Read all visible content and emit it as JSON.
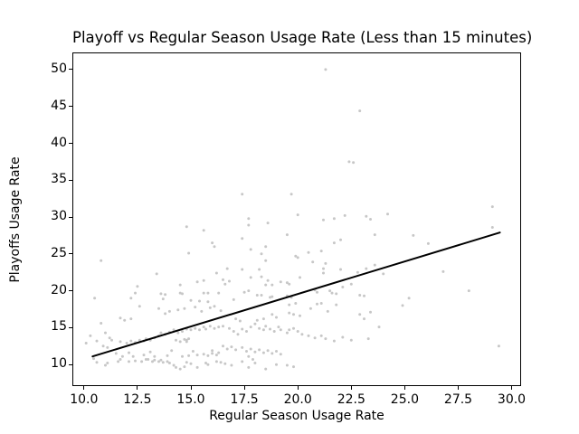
{
  "figure": {
    "background": "#ffffff",
    "text_color": "#000000"
  },
  "chart_data": {
    "type": "scatter",
    "title": "Playoff vs Regular Season Usage Rate (Less than 15 minutes)",
    "xlabel": "Regular Season Usage Rate",
    "ylabel": "Playoffs Usage Rate",
    "xlim": [
      9.5,
      30.4
    ],
    "ylim": [
      7.2,
      52.2
    ],
    "grid": false,
    "legend": null,
    "xticks": [
      {
        "value": 10.0,
        "label": "10.0"
      },
      {
        "value": 12.5,
        "label": "12.5"
      },
      {
        "value": 15.0,
        "label": "15.0"
      },
      {
        "value": 17.5,
        "label": "17.5"
      },
      {
        "value": 20.0,
        "label": "20.0"
      },
      {
        "value": 22.5,
        "label": "22.5"
      },
      {
        "value": 25.0,
        "label": "25.0"
      },
      {
        "value": 27.5,
        "label": "27.5"
      },
      {
        "value": 30.0,
        "label": "30.0"
      }
    ],
    "yticks": [
      {
        "value": 10,
        "label": "10"
      },
      {
        "value": 15,
        "label": "15"
      },
      {
        "value": 20,
        "label": "20"
      },
      {
        "value": 25,
        "label": "25"
      },
      {
        "value": 30,
        "label": "30"
      },
      {
        "value": 35,
        "label": "35"
      },
      {
        "value": 40,
        "label": "40"
      },
      {
        "value": 45,
        "label": "45"
      },
      {
        "value": 50,
        "label": "50"
      }
    ],
    "point_color": "#c7c7c7",
    "point_radius": 1.5,
    "trend_line": {
      "x_start": 10.4,
      "y_start": 11.1,
      "x_end": 29.45,
      "y_end": 27.9,
      "color": "#000000",
      "width": 2
    },
    "points": [
      [
        21.3,
        50.0
      ],
      [
        22.9,
        44.4
      ],
      [
        22.4,
        37.5
      ],
      [
        22.6,
        37.4
      ],
      [
        17.4,
        33.1
      ],
      [
        19.7,
        33.1
      ],
      [
        29.1,
        31.4
      ],
      [
        20.0,
        30.3
      ],
      [
        24.2,
        30.4
      ],
      [
        22.2,
        30.2
      ],
      [
        23.2,
        30.1
      ],
      [
        23.4,
        29.7
      ],
      [
        21.2,
        29.6
      ],
      [
        21.7,
        29.8
      ],
      [
        17.7,
        29.8
      ],
      [
        18.6,
        29.2
      ],
      [
        17.7,
        28.9
      ],
      [
        29.1,
        28.6
      ],
      [
        14.8,
        28.7
      ],
      [
        15.6,
        28.2
      ],
      [
        16.0,
        26.5
      ],
      [
        16.1,
        26.0
      ],
      [
        14.9,
        25.1
      ],
      [
        17.4,
        27.1
      ],
      [
        19.5,
        27.6
      ],
      [
        21.7,
        26.5
      ],
      [
        22.0,
        26.9
      ],
      [
        17.8,
        25.6
      ],
      [
        18.5,
        26.0
      ],
      [
        18.3,
        25.0
      ],
      [
        20.5,
        25.2
      ],
      [
        21.1,
        25.4
      ],
      [
        23.6,
        27.6
      ],
      [
        25.4,
        27.5
      ],
      [
        26.1,
        26.4
      ],
      [
        10.8,
        24.1
      ],
      [
        13.4,
        22.3
      ],
      [
        16.2,
        22.4
      ],
      [
        18.5,
        24.1
      ],
      [
        19.9,
        24.7
      ],
      [
        20.0,
        24.5
      ],
      [
        21.3,
        23.7
      ],
      [
        20.7,
        23.9
      ],
      [
        16.7,
        23.0
      ],
      [
        17.4,
        22.9
      ],
      [
        18.2,
        22.9
      ],
      [
        18.3,
        21.9
      ],
      [
        17.8,
        21.8
      ],
      [
        20.1,
        21.8
      ],
      [
        21.2,
        23.0
      ],
      [
        21.2,
        22.4
      ],
      [
        22.0,
        22.9
      ],
      [
        22.8,
        22.5
      ],
      [
        23.2,
        23.0
      ],
      [
        23.6,
        23.5
      ],
      [
        24.0,
        22.3
      ],
      [
        26.8,
        22.6
      ],
      [
        15.3,
        21.2
      ],
      [
        15.6,
        21.4
      ],
      [
        14.5,
        20.8
      ],
      [
        12.5,
        20.6
      ],
      [
        12.4,
        19.7
      ],
      [
        13.6,
        19.6
      ],
      [
        13.8,
        19.5
      ],
      [
        14.5,
        19.7
      ],
      [
        14.6,
        19.6
      ],
      [
        15.6,
        19.7
      ],
      [
        15.8,
        19.7
      ],
      [
        16.3,
        19.7
      ],
      [
        10.5,
        19.0
      ],
      [
        12.2,
        19.0
      ],
      [
        13.7,
        18.9
      ],
      [
        15.0,
        18.7
      ],
      [
        15.4,
        18.6
      ],
      [
        15.8,
        18.5
      ],
      [
        18.6,
        21.4
      ],
      [
        18.8,
        20.8
      ],
      [
        18.5,
        20.8
      ],
      [
        19.2,
        21.2
      ],
      [
        19.5,
        21.1
      ],
      [
        19.6,
        20.9
      ],
      [
        16.5,
        21.5
      ],
      [
        16.8,
        21.3
      ],
      [
        16.6,
        20.9
      ],
      [
        17.5,
        19.8
      ],
      [
        17.7,
        20.0
      ],
      [
        18.1,
        19.4
      ],
      [
        18.3,
        19.4
      ],
      [
        18.7,
        19.1
      ],
      [
        18.8,
        19.2
      ],
      [
        19.5,
        19.3
      ],
      [
        19.7,
        19.1
      ],
      [
        20.8,
        20.1
      ],
      [
        20.9,
        19.8
      ],
      [
        21.5,
        20.0
      ],
      [
        21.6,
        19.7
      ],
      [
        21.8,
        19.6
      ],
      [
        22.1,
        20.5
      ],
      [
        22.5,
        20.9
      ],
      [
        22.9,
        19.4
      ],
      [
        23.1,
        19.3
      ],
      [
        17.0,
        18.8
      ],
      [
        28.0,
        20.0
      ],
      [
        25.2,
        19.0
      ],
      [
        24.9,
        18.0
      ],
      [
        12.6,
        17.9
      ],
      [
        13.5,
        17.6
      ],
      [
        11.7,
        16.3
      ],
      [
        11.9,
        16.0
      ],
      [
        12.2,
        16.2
      ],
      [
        13.8,
        16.9
      ],
      [
        14.0,
        17.2
      ],
      [
        14.4,
        17.4
      ],
      [
        14.7,
        17.6
      ],
      [
        15.2,
        17.8
      ],
      [
        15.5,
        17.2
      ],
      [
        15.9,
        17.7
      ],
      [
        16.1,
        17.9
      ],
      [
        16.4,
        17.3
      ],
      [
        19.6,
        18.1
      ],
      [
        19.9,
        18.3
      ],
      [
        20.9,
        18.2
      ],
      [
        21.1,
        18.3
      ],
      [
        21.8,
        18.1
      ],
      [
        20.6,
        17.6
      ],
      [
        21.4,
        17.2
      ],
      [
        19.6,
        17.0
      ],
      [
        19.8,
        16.8
      ],
      [
        20.1,
        16.6
      ],
      [
        18.8,
        16.8
      ],
      [
        19.0,
        16.4
      ],
      [
        18.4,
        16.2
      ],
      [
        18.1,
        16.0
      ],
      [
        17.1,
        16.2
      ],
      [
        17.3,
        15.9
      ],
      [
        22.9,
        16.8
      ],
      [
        23.1,
        16.2
      ],
      [
        23.4,
        17.1
      ],
      [
        10.8,
        15.6
      ],
      [
        10.3,
        13.9
      ],
      [
        11.0,
        14.3
      ],
      [
        13.5,
        13.9
      ],
      [
        13.6,
        14.3
      ],
      [
        13.8,
        14.1
      ],
      [
        14.0,
        14.4
      ],
      [
        14.2,
        14.7
      ],
      [
        14.4,
        14.3
      ],
      [
        14.6,
        14.5
      ],
      [
        14.8,
        14.8
      ],
      [
        15.0,
        14.7
      ],
      [
        15.2,
        14.9
      ],
      [
        15.4,
        14.7
      ],
      [
        15.6,
        15.1
      ],
      [
        15.7,
        14.8
      ],
      [
        15.9,
        15.2
      ],
      [
        16.1,
        14.9
      ],
      [
        16.3,
        15.1
      ],
      [
        16.5,
        15.2
      ],
      [
        16.8,
        14.9
      ],
      [
        17.0,
        14.5
      ],
      [
        17.2,
        14.1
      ],
      [
        17.4,
        14.8
      ],
      [
        17.6,
        14.5
      ],
      [
        17.8,
        15.1
      ],
      [
        18.0,
        15.5
      ],
      [
        18.2,
        14.9
      ],
      [
        18.4,
        14.7
      ],
      [
        18.5,
        15.2
      ],
      [
        18.7,
        14.8
      ],
      [
        18.9,
        14.5
      ],
      [
        19.1,
        15.1
      ],
      [
        19.2,
        14.7
      ],
      [
        19.5,
        14.3
      ],
      [
        19.6,
        14.7
      ],
      [
        19.8,
        14.9
      ],
      [
        20.0,
        14.5
      ],
      [
        20.2,
        14.1
      ],
      [
        20.5,
        13.9
      ],
      [
        23.8,
        15.1
      ],
      [
        11.2,
        13.6
      ],
      [
        11.3,
        13.3
      ],
      [
        10.6,
        13.2
      ],
      [
        10.1,
        12.9
      ],
      [
        10.9,
        12.5
      ],
      [
        11.1,
        12.3
      ],
      [
        11.7,
        13.1
      ],
      [
        12.0,
        12.9
      ],
      [
        12.2,
        13.2
      ],
      [
        12.4,
        13.0
      ],
      [
        12.6,
        13.3
      ],
      [
        12.8,
        13.2
      ],
      [
        12.9,
        13.5
      ],
      [
        13.1,
        13.3
      ],
      [
        13.3,
        13.6
      ],
      [
        14.3,
        13.3
      ],
      [
        14.5,
        13.1
      ],
      [
        14.7,
        13.4
      ],
      [
        14.8,
        13.3
      ],
      [
        14.9,
        13.5
      ],
      [
        14.8,
        13.1
      ],
      [
        20.8,
        13.6
      ],
      [
        21.1,
        13.9
      ],
      [
        21.3,
        13.5
      ],
      [
        21.7,
        13.2
      ],
      [
        22.1,
        13.7
      ],
      [
        22.5,
        13.3
      ],
      [
        23.3,
        13.5
      ],
      [
        16.5,
        12.5
      ],
      [
        16.7,
        12.1
      ],
      [
        16.9,
        12.4
      ],
      [
        17.1,
        12.0
      ],
      [
        17.4,
        12.3
      ],
      [
        17.8,
        12.1
      ],
      [
        18.2,
        12.0
      ],
      [
        29.4,
        12.5
      ],
      [
        11.5,
        11.5
      ],
      [
        11.8,
        11.1
      ],
      [
        12.1,
        11.6
      ],
      [
        12.3,
        11.1
      ],
      [
        12.8,
        11.3
      ],
      [
        13.1,
        11.7
      ],
      [
        13.3,
        11.1
      ],
      [
        13.9,
        11.2
      ],
      [
        14.1,
        11.9
      ],
      [
        14.6,
        11.1
      ],
      [
        14.9,
        11.2
      ],
      [
        15.1,
        11.8
      ],
      [
        15.3,
        11.3
      ],
      [
        15.6,
        11.4
      ],
      [
        15.8,
        11.2
      ],
      [
        16.0,
        11.9
      ],
      [
        16.2,
        11.3
      ],
      [
        16.3,
        11.6
      ],
      [
        17.6,
        11.8
      ],
      [
        18.0,
        11.7
      ],
      [
        18.4,
        11.6
      ],
      [
        18.6,
        11.9
      ],
      [
        18.8,
        11.5
      ],
      [
        19.0,
        11.8
      ],
      [
        19.2,
        11.4
      ],
      [
        17.7,
        11.1
      ],
      [
        16.0,
        11.5
      ],
      [
        10.45,
        10.8
      ],
      [
        10.6,
        10.3
      ],
      [
        11.0,
        9.9
      ],
      [
        11.1,
        10.2
      ],
      [
        11.6,
        10.4
      ],
      [
        11.7,
        10.7
      ],
      [
        12.1,
        10.4
      ],
      [
        12.4,
        10.5
      ],
      [
        12.7,
        10.4
      ],
      [
        12.9,
        10.7
      ],
      [
        13.0,
        10.7
      ],
      [
        13.2,
        10.4
      ],
      [
        13.3,
        10.6
      ],
      [
        13.5,
        10.4
      ],
      [
        13.6,
        10.6
      ],
      [
        13.7,
        10.3
      ],
      [
        13.9,
        10.4
      ],
      [
        14.0,
        10.2
      ],
      [
        14.2,
        9.9
      ],
      [
        14.3,
        9.6
      ],
      [
        14.5,
        9.4
      ],
      [
        14.7,
        9.7
      ],
      [
        14.8,
        10.3
      ],
      [
        15.0,
        10.1
      ],
      [
        15.3,
        9.6
      ],
      [
        15.7,
        10.2
      ],
      [
        15.8,
        10.0
      ],
      [
        16.2,
        10.4
      ],
      [
        16.4,
        10.3
      ],
      [
        16.6,
        10.1
      ],
      [
        16.9,
        9.9
      ],
      [
        17.4,
        10.4
      ],
      [
        17.7,
        9.6
      ],
      [
        18.0,
        10.2
      ],
      [
        18.5,
        9.4
      ],
      [
        19.0,
        10.0
      ],
      [
        19.8,
        9.7
      ],
      [
        17.9,
        10.7
      ],
      [
        19.5,
        9.9
      ]
    ]
  }
}
